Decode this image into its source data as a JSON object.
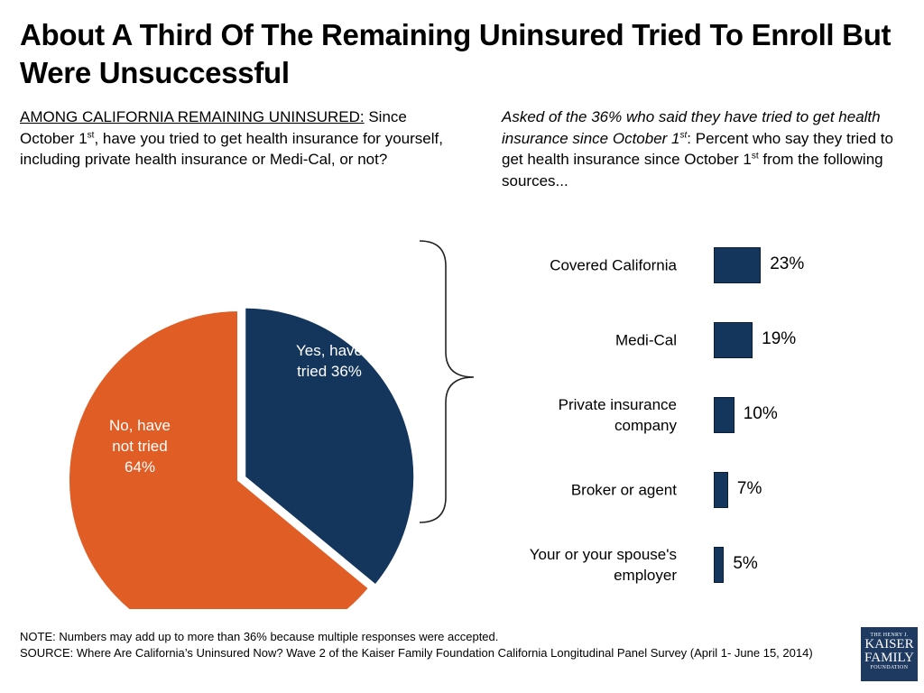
{
  "title": "About A Third Of The Remaining Uninsured Tried To Enroll But Were Unsuccessful",
  "left_question": {
    "lead": "AMONG CALIFORNIA REMAINING UNINSURED:",
    "pre_sup": " Since October 1",
    "sup": "st",
    "post_sup": ", have you tried to get health insurance for yourself, including private health insurance or Medi-Cal, or not?"
  },
  "right_question": {
    "italic_pre": "Asked of the 36% who said they have tried to get health insurance since October 1",
    "italic_sup": "st",
    "mid": ": Percent who say they tried to get health insurance since October 1",
    "sup2": "st",
    "post": " from the following sources..."
  },
  "chart_data": [
    {
      "type": "pie",
      "slices": [
        {
          "label": "Yes, have tried 36%",
          "label_lines": [
            "Yes, have",
            "tried 36%"
          ],
          "value": 36,
          "color": "#15365c",
          "exploded": true
        },
        {
          "label": "No, have not tried 64%",
          "label_lines": [
            "No, have",
            "not tried",
            "64%"
          ],
          "value": 64,
          "color": "#e05d26",
          "exploded": false
        }
      ]
    },
    {
      "type": "bar",
      "orientation": "horizontal",
      "color": "#15365c",
      "categories": [
        [
          "Covered California"
        ],
        [
          "Medi-Cal"
        ],
        [
          "Private insurance",
          "company"
        ],
        [
          "Broker or agent"
        ],
        [
          "Your or your spouse's",
          "employer"
        ]
      ],
      "values": [
        23,
        19,
        10,
        7,
        5
      ],
      "value_labels": [
        "23%",
        "19%",
        "10%",
        "7%",
        "5%"
      ]
    }
  ],
  "footnote": {
    "note": "NOTE: Numbers may add up to more than 36% because multiple responses were accepted.",
    "source": "SOURCE: Where Are California’s Uninsured Now? Wave 2 of the Kaiser Family Foundation California Longitudinal Panel Survey (April 1- June 15, 2014)"
  },
  "logo": {
    "line1": "THE HENRY J.",
    "line2": "KAISER",
    "line3": "FAMILY",
    "line4": "FOUNDATION"
  }
}
